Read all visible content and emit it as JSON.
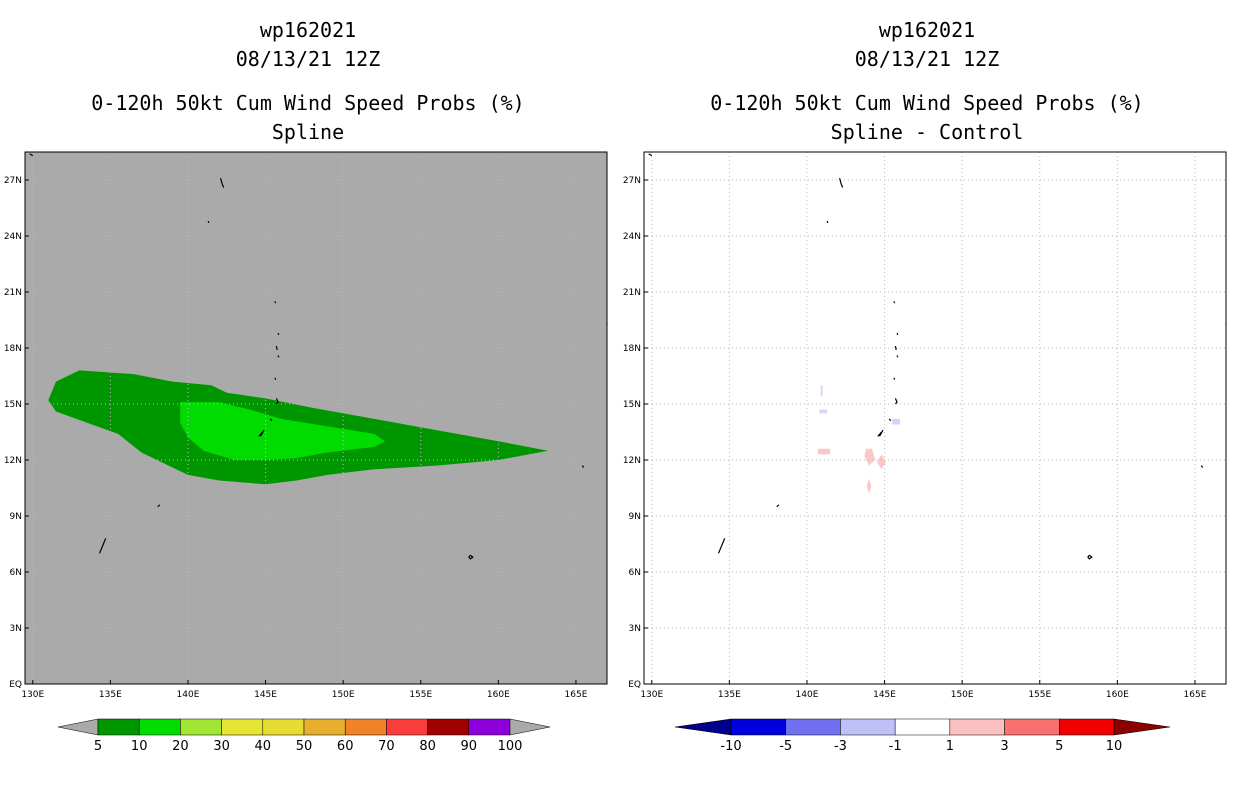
{
  "left_panel": {
    "title_lines": [
      "wp162021",
      "08/13/21 12Z",
      "0-120h 50kt Cum Wind Speed Probs (%)",
      "Spline"
    ]
  },
  "right_panel": {
    "title_lines": [
      "wp162021",
      "08/13/21 12Z",
      "0-120h 50kt Cum Wind Speed Probs (%)",
      "Spline - Control"
    ]
  },
  "chart_data": [
    {
      "type": "heatmap",
      "title": "0-120h 50kt Cum Wind Speed Probs (%)",
      "subtitle": "Spline",
      "storm": "wp162021",
      "time": "08/13/21 12Z",
      "xlabel": "",
      "ylabel": "",
      "xlim": [
        129.5,
        167
      ],
      "ylim": [
        0,
        28.5
      ],
      "x_ticks": [
        130,
        135,
        140,
        145,
        150,
        155,
        160,
        165
      ],
      "x_tick_labels": [
        "130E",
        "135E",
        "140E",
        "145E",
        "150E",
        "155E",
        "160E",
        "165E"
      ],
      "y_ticks": [
        0,
        3,
        6,
        9,
        12,
        15,
        18,
        21,
        24,
        27
      ],
      "y_tick_labels": [
        "EQ",
        "3N",
        "6N",
        "9N",
        "12N",
        "15N",
        "18N",
        "21N",
        "24N",
        "27N"
      ],
      "grid": true,
      "background_color": "#aaaaaa",
      "colorbar": {
        "levels": [
          "5",
          "10",
          "20",
          "30",
          "40",
          "50",
          "60",
          "70",
          "80",
          "90",
          "100"
        ],
        "colors": [
          "#009600",
          "#00dc00",
          "#a0e632",
          "#e6e632",
          "#e6dc32",
          "#e6af2d",
          "#f08228",
          "#fa3c3c",
          "#a00000",
          "#8c00dc"
        ],
        "extend_color": "#aaaaaa"
      },
      "contours": [
        {
          "level": "5-10%",
          "color": "#009600",
          "polygon": [
            [
              131.5,
              16.2
            ],
            [
              133,
              16.8
            ],
            [
              136.5,
              16.6
            ],
            [
              139,
              16.2
            ],
            [
              141.5,
              16.0
            ],
            [
              142.5,
              15.6
            ],
            [
              145,
              15.3
            ],
            [
              148,
              14.8
            ],
            [
              152,
              14.2
            ],
            [
              156,
              13.6
            ],
            [
              160,
              13.0
            ],
            [
              163.2,
              12.5
            ],
            [
              160,
              12.0
            ],
            [
              156,
              11.7
            ],
            [
              152,
              11.5
            ],
            [
              149,
              11.2
            ],
            [
              147,
              10.9
            ],
            [
              145,
              10.7
            ],
            [
              142,
              10.9
            ],
            [
              140,
              11.2
            ],
            [
              138.5,
              11.8
            ],
            [
              137,
              12.4
            ],
            [
              135.5,
              13.4
            ],
            [
              133.5,
              14.0
            ],
            [
              131.5,
              14.6
            ],
            [
              131.0,
              15.2
            ]
          ]
        },
        {
          "level": "10-20%",
          "color": "#00dc00",
          "polygon": [
            [
              139.5,
              15.1
            ],
            [
              142,
              15.1
            ],
            [
              144,
              14.7
            ],
            [
              146,
              14.2
            ],
            [
              149,
              13.8
            ],
            [
              152,
              13.4
            ],
            [
              152.7,
              13.0
            ],
            [
              152,
              12.7
            ],
            [
              149,
              12.4
            ],
            [
              147,
              12.1
            ],
            [
              145,
              12.0
            ],
            [
              143,
              12.0
            ],
            [
              141,
              12.5
            ],
            [
              140,
              13.2
            ],
            [
              139.5,
              14.0
            ]
          ]
        }
      ]
    },
    {
      "type": "heatmap",
      "title": "0-120h 50kt Cum Wind Speed Probs (%)",
      "subtitle": "Spline - Control",
      "storm": "wp162021",
      "time": "08/13/21 12Z",
      "xlabel": "",
      "ylabel": "",
      "xlim": [
        129.5,
        167
      ],
      "ylim": [
        0,
        28.5
      ],
      "x_ticks": [
        130,
        135,
        140,
        145,
        150,
        155,
        160,
        165
      ],
      "x_tick_labels": [
        "130E",
        "135E",
        "140E",
        "145E",
        "150E",
        "155E",
        "160E",
        "165E"
      ],
      "y_ticks": [
        0,
        3,
        6,
        9,
        12,
        15,
        18,
        21,
        24,
        27
      ],
      "y_tick_labels": [
        "EQ",
        "3N",
        "6N",
        "9N",
        "12N",
        "15N",
        "18N",
        "21N",
        "24N",
        "27N"
      ],
      "grid": true,
      "background_color": "#ffffff",
      "colorbar": {
        "levels": [
          "-10",
          "-5",
          "-3",
          "-1",
          "1",
          "3",
          "5",
          "10"
        ],
        "colors": [
          "#0000dc",
          "#7070f0",
          "#c0c0f8",
          "#ffffff",
          "#fbc0c0",
          "#f87070",
          "#f00000"
        ],
        "extend_low_color": "#00008c",
        "extend_high_color": "#8c0000"
      },
      "contours": [
        {
          "level": "1-3%",
          "color": "#fbc8c8",
          "polygon": [
            [
              140.7,
              12.6
            ],
            [
              141.5,
              12.6
            ],
            [
              141.5,
              12.3
            ],
            [
              140.7,
              12.3
            ]
          ]
        },
        {
          "level": "1-3%",
          "color": "#fbc8c8",
          "polygon": [
            [
              143.8,
              12.6
            ],
            [
              144.2,
              12.6
            ],
            [
              144.4,
              12.0
            ],
            [
              144.0,
              11.7
            ],
            [
              143.7,
              12.2
            ]
          ]
        },
        {
          "level": "1-3%",
          "color": "#fbc8c8",
          "polygon": [
            [
              144.8,
              12.3
            ],
            [
              145.1,
              11.9
            ],
            [
              144.8,
              11.5
            ],
            [
              144.5,
              11.9
            ]
          ]
        },
        {
          "level": "1-3%",
          "color": "#fbc8c8",
          "polygon": [
            [
              144.0,
              11.0
            ],
            [
              144.15,
              10.6
            ],
            [
              144.0,
              10.2
            ],
            [
              143.85,
              10.6
            ]
          ]
        },
        {
          "level": "-3--1%",
          "color": "#d2d2fa",
          "polygon": [
            [
              140.8,
              14.7
            ],
            [
              141.3,
              14.7
            ],
            [
              141.3,
              14.5
            ],
            [
              140.8,
              14.5
            ]
          ]
        },
        {
          "level": "-3--1%",
          "color": "#d2d2fa",
          "polygon": [
            [
              140.9,
              16.0
            ],
            [
              141.0,
              16.0
            ],
            [
              141.0,
              15.4
            ],
            [
              140.9,
              15.4
            ]
          ]
        },
        {
          "level": "-3--1%",
          "color": "#d2d2fa",
          "polygon": [
            [
              145.5,
              14.2
            ],
            [
              146.0,
              14.2
            ],
            [
              146.0,
              13.9
            ],
            [
              145.5,
              13.9
            ]
          ]
        }
      ]
    }
  ]
}
